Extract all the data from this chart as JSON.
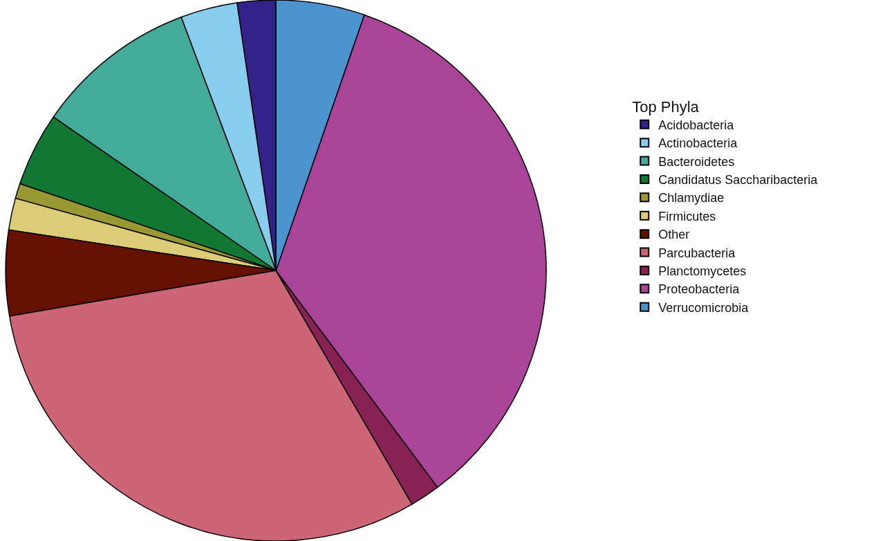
{
  "chart_data": {
    "type": "pie",
    "legend_title": "Top Phyla",
    "legend": "right",
    "categories": [
      "Acidobacteria",
      "Actinobacteria",
      "Bacteroidetes",
      "Candidatus Saccharibacteria",
      "Chlamydiae",
      "Firmicutes",
      "Other",
      "Parcubacteria",
      "Planctomycetes",
      "Proteobacteria",
      "Verrucomicrobia"
    ],
    "values": [
      2.3,
      3.4,
      9.7,
      4.4,
      0.9,
      1.9,
      5.1,
      30.7,
      1.8,
      34.5,
      5.3
    ],
    "colors": [
      "#332288",
      "#88ccee",
      "#44aa99",
      "#117733",
      "#999933",
      "#ddcc77",
      "#661100",
      "#cc6677",
      "#882255",
      "#aa4499",
      "#4b94d0"
    ]
  }
}
